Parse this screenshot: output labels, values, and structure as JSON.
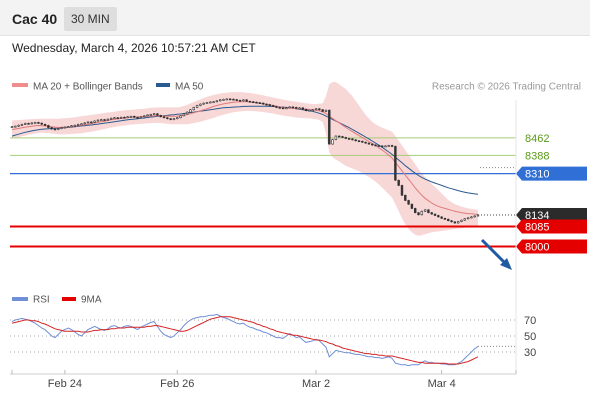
{
  "header": {
    "instrument": "Cac 40",
    "period": "30 MIN",
    "datetime": "Wednesday, March 4, 2026 10:57:21 AM CET"
  },
  "legend": {
    "bollinger": "MA 20 + Bollinger Bands",
    "ma50": "MA 50",
    "credit": "Research © 2026 Trading Central",
    "rsi": "RSI",
    "rsi_ma": "9MA"
  },
  "colors": {
    "candle": "#333333",
    "band_fill": "#f6c9c9",
    "ma20": "#e07a7a",
    "ma50": "#2a5a8f",
    "green_level": "#a8cc7a",
    "green_text": "#5a9a1a",
    "blue_level": "#2f6fd6",
    "red_level": "#e50000",
    "current_badge": "#2b2b2b",
    "arrow": "#1f5aa3",
    "rsi": "#6f8fd6",
    "rsi_ma": "#d42424"
  },
  "chart_data": {
    "type": "candlestick",
    "y_range": [
      7900,
      8700
    ],
    "x_ticks": [
      "Feb 24",
      "Feb 26",
      "Mar 2",
      "Mar 4"
    ],
    "levels": [
      {
        "value": 8462,
        "label": "8462",
        "style": "resistance-green"
      },
      {
        "value": 8388,
        "label": "8388",
        "style": "resistance-green"
      },
      {
        "value": 8310,
        "label": "8310",
        "style": "pivot-blue"
      },
      {
        "value": 8134,
        "label": "8134",
        "style": "current-price"
      },
      {
        "value": 8085,
        "label": "8085",
        "style": "support-red"
      },
      {
        "value": 8000,
        "label": "8000",
        "style": "support-red"
      }
    ],
    "closes": [
      8510,
      8512,
      8516,
      8520,
      8524,
      8522,
      8526,
      8528,
      8525,
      8520,
      8515,
      8506,
      8500,
      8498,
      8502,
      8506,
      8508,
      8510,
      8514,
      8516,
      8520,
      8522,
      8526,
      8530,
      8528,
      8534,
      8538,
      8540,
      8538,
      8542,
      8546,
      8548,
      8546,
      8550,
      8549,
      8552,
      8554,
      8550,
      8548,
      8552,
      8556,
      8560,
      8562,
      8565,
      8558,
      8552,
      8548,
      8544,
      8540,
      8544,
      8548,
      8556,
      8564,
      8572,
      8582,
      8592,
      8600,
      8606,
      8610,
      8612,
      8615,
      8616,
      8620,
      8624,
      8626,
      8628,
      8627,
      8625,
      8622,
      8620,
      8624,
      8618,
      8616,
      8614,
      8612,
      8610,
      8606,
      8604,
      8600,
      8596,
      8592,
      8590,
      8588,
      8590,
      8594,
      8592,
      8588,
      8590,
      8584,
      8578,
      8580,
      8582,
      8586,
      8582,
      8575,
      8580,
      8436,
      8455,
      8470,
      8468,
      8464,
      8460,
      8458,
      8454,
      8450,
      8448,
      8444,
      8440,
      8436,
      8432,
      8430,
      8428,
      8426,
      8428,
      8430,
      8426,
      8282,
      8260,
      8218,
      8196,
      8180,
      8162,
      8144,
      8135,
      8150,
      8156,
      8144,
      8138,
      8132,
      8126,
      8120,
      8116,
      8110,
      8105,
      8100,
      8106,
      8112,
      8118,
      8122,
      8126,
      8130,
      8134
    ],
    "ma20": [
      8498,
      8500,
      8502,
      8505,
      8508,
      8510,
      8512,
      8514,
      8515,
      8514,
      8513,
      8512,
      8510,
      8508,
      8507,
      8507,
      8508,
      8509,
      8510,
      8512,
      8514,
      8516,
      8518,
      8521,
      8523,
      8526,
      8528,
      8531,
      8533,
      8536,
      8539,
      8541,
      8543,
      8545,
      8547,
      8549,
      8550,
      8551,
      8551,
      8552,
      8553,
      8554,
      8555,
      8556,
      8556,
      8556,
      8555,
      8555,
      8554,
      8554,
      8555,
      8556,
      8558,
      8561,
      8565,
      8569,
      8573,
      8577,
      8582,
      8586,
      8591,
      8596,
      8600,
      8604,
      8607,
      8610,
      8612,
      8614,
      8615,
      8616,
      8616,
      8616,
      8615,
      8614,
      8612,
      8610,
      8608,
      8605,
      8602,
      8600,
      8597,
      8594,
      8591,
      8590,
      8589,
      8588,
      8587,
      8586,
      8585,
      8584,
      8583,
      8581,
      8580,
      8577,
      8573,
      8566,
      8555,
      8545,
      8535,
      8526,
      8516,
      8507,
      8498,
      8489,
      8480,
      8472,
      8463,
      8455,
      8447,
      8438,
      8430,
      8420,
      8410,
      8400,
      8388,
      8376,
      8358,
      8340,
      8322,
      8304,
      8286,
      8268,
      8250,
      8233,
      8218,
      8205,
      8195,
      8185,
      8177,
      8171,
      8166,
      8162,
      8158,
      8154,
      8150,
      8147,
      8144,
      8142,
      8140,
      8139,
      8138,
      8137
    ],
    "ma50": [
      8470,
      8474,
      8478,
      8482,
      8486,
      8489,
      8492,
      8495,
      8497,
      8499,
      8500,
      8501,
      8502,
      8503,
      8504,
      8505,
      8506,
      8507,
      8508,
      8510,
      8511,
      8513,
      8514,
      8516,
      8517,
      8519,
      8521,
      8523,
      8525,
      8527,
      8529,
      8531,
      8533,
      8535,
      8537,
      8539,
      8541,
      8542,
      8544,
      8546,
      8547,
      8549,
      8551,
      8552,
      8554,
      8555,
      8557,
      8558,
      8560,
      8561,
      8563,
      8564,
      8566,
      8568,
      8570,
      8572,
      8574,
      8576,
      8578,
      8580,
      8582,
      8584,
      8586,
      8588,
      8590,
      8591,
      8592,
      8593,
      8594,
      8595,
      8596,
      8596,
      8597,
      8597,
      8597,
      8597,
      8597,
      8597,
      8596,
      8596,
      8595,
      8594,
      8593,
      8592,
      8590,
      8588,
      8586,
      8584,
      8582,
      8580,
      8578,
      8575,
      8571,
      8567,
      8562,
      8555,
      8548,
      8541,
      8534,
      8527,
      8520,
      8513,
      8506,
      8498,
      8490,
      8482,
      8474,
      8466,
      8458,
      8449,
      8440,
      8431,
      8422,
      8412,
      8402,
      8392,
      8380,
      8368,
      8356,
      8344,
      8333,
      8322,
      8312,
      8302,
      8294,
      8287,
      8281,
      8275,
      8270,
      8265,
      8260,
      8255,
      8250,
      8246,
      8242,
      8238,
      8234,
      8231,
      8228,
      8226,
      8224,
      8222
    ],
    "bb_upper": [
      8536,
      8537,
      8538,
      8539,
      8540,
      8541,
      8542,
      8543,
      8544,
      8544,
      8544,
      8544,
      8544,
      8544,
      8544,
      8545,
      8546,
      8547,
      8548,
      8550,
      8552,
      8554,
      8556,
      8558,
      8560,
      8562,
      8564,
      8566,
      8568,
      8570,
      8572,
      8574,
      8576,
      8578,
      8580,
      8581,
      8582,
      8583,
      8584,
      8585,
      8586,
      8588,
      8590,
      8591,
      8592,
      8592,
      8592,
      8592,
      8592,
      8592,
      8592,
      8594,
      8598,
      8603,
      8609,
      8615,
      8621,
      8627,
      8632,
      8637,
      8641,
      8645,
      8648,
      8651,
      8653,
      8655,
      8656,
      8657,
      8657,
      8657,
      8656,
      8655,
      8653,
      8651,
      8648,
      8646,
      8643,
      8640,
      8637,
      8634,
      8631,
      8628,
      8625,
      8622,
      8620,
      8618,
      8616,
      8614,
      8612,
      8610,
      8608,
      8606,
      8606,
      8608,
      8610,
      8640,
      8690,
      8700,
      8700,
      8690,
      8680,
      8670,
      8655,
      8640,
      8620,
      8600,
      8580,
      8560,
      8545,
      8530,
      8520,
      8512,
      8506,
      8500,
      8494,
      8488,
      8470,
      8450,
      8430,
      8410,
      8390,
      8370,
      8350,
      8330,
      8310,
      8295,
      8280,
      8266,
      8253,
      8240,
      8226,
      8212,
      8198,
      8188,
      8180,
      8175,
      8170,
      8166,
      8162,
      8160,
      8158,
      8156
    ],
    "bb_lower": [
      8460,
      8462,
      8465,
      8469,
      8472,
      8475,
      8478,
      8481,
      8483,
      8484,
      8484,
      8483,
      8481,
      8479,
      8478,
      8478,
      8478,
      8478,
      8479,
      8480,
      8481,
      8482,
      8484,
      8486,
      8488,
      8491,
      8494,
      8497,
      8500,
      8503,
      8506,
      8509,
      8511,
      8513,
      8515,
      8517,
      8519,
      8520,
      8521,
      8522,
      8523,
      8524,
      8525,
      8526,
      8526,
      8525,
      8524,
      8522,
      8520,
      8520,
      8520,
      8520,
      8520,
      8520,
      8522,
      8525,
      8528,
      8531,
      8535,
      8539,
      8543,
      8547,
      8552,
      8557,
      8561,
      8565,
      8568,
      8571,
      8573,
      8575,
      8576,
      8577,
      8577,
      8576,
      8575,
      8574,
      8572,
      8570,
      8568,
      8566,
      8563,
      8560,
      8557,
      8555,
      8553,
      8551,
      8549,
      8548,
      8547,
      8546,
      8545,
      8544,
      8542,
      8538,
      8530,
      8480,
      8400,
      8380,
      8370,
      8362,
      8352,
      8344,
      8338,
      8332,
      8326,
      8320,
      8312,
      8304,
      8296,
      8286,
      8276,
      8264,
      8250,
      8236,
      8222,
      8208,
      8180,
      8150,
      8120,
      8095,
      8075,
      8060,
      8050,
      8045,
      8048,
      8052,
      8056,
      8060,
      8062,
      8064,
      8066,
      8068,
      8070,
      8072,
      8074,
      8076,
      8078,
      8080,
      8082,
      8084,
      8086,
      8088
    ],
    "rsi": {
      "ticks": [
        70,
        50,
        30
      ],
      "range": [
        10,
        90
      ],
      "values": [
        68,
        70,
        71,
        72,
        71,
        70,
        68,
        66,
        63,
        60,
        58,
        54,
        50,
        48,
        52,
        56,
        58,
        60,
        58,
        55,
        52,
        50,
        54,
        58,
        60,
        62,
        60,
        58,
        57,
        59,
        62,
        63,
        61,
        60,
        62,
        63,
        62,
        60,
        58,
        61,
        63,
        65,
        67,
        68,
        62,
        56,
        52,
        50,
        48,
        50,
        54,
        58,
        63,
        67,
        70,
        72,
        73,
        74,
        74,
        75,
        76,
        76,
        77,
        75,
        73,
        72,
        70,
        68,
        66,
        65,
        66,
        63,
        61,
        60,
        58,
        57,
        55,
        54,
        52,
        50,
        48,
        48,
        47,
        50,
        53,
        51,
        48,
        49,
        45,
        42,
        43,
        44,
        46,
        44,
        40,
        36,
        24,
        28,
        32,
        31,
        30,
        29,
        29,
        28,
        27,
        27,
        26,
        25,
        24,
        24,
        23,
        23,
        22,
        23,
        24,
        22,
        16,
        15,
        14,
        14,
        13,
        14,
        14,
        14,
        17,
        19,
        17,
        17,
        16,
        16,
        15,
        15,
        14,
        14,
        14,
        16,
        18,
        22,
        26,
        30,
        34,
        37
      ],
      "ma": [
        66,
        67,
        68,
        69,
        70,
        70,
        69,
        69,
        68,
        66,
        65,
        63,
        61,
        59,
        58,
        57,
        56,
        56,
        56,
        56,
        56,
        55,
        55,
        55,
        56,
        57,
        57,
        58,
        58,
        58,
        59,
        59,
        60,
        60,
        60,
        61,
        61,
        61,
        61,
        61,
        61,
        62,
        62,
        63,
        63,
        62,
        61,
        60,
        59,
        58,
        57,
        56,
        56,
        57,
        59,
        61,
        63,
        65,
        67,
        69,
        71,
        72,
        73,
        74,
        74,
        74,
        74,
        73,
        72,
        71,
        70,
        69,
        68,
        67,
        65,
        64,
        62,
        61,
        59,
        58,
        56,
        55,
        54,
        53,
        52,
        51,
        51,
        50,
        49,
        48,
        47,
        46,
        45,
        45,
        44,
        43,
        41,
        40,
        38,
        37,
        35,
        34,
        33,
        32,
        31,
        30,
        29,
        28,
        28,
        27,
        27,
        26,
        26,
        25,
        25,
        25,
        24,
        23,
        22,
        21,
        20,
        19,
        18,
        17,
        17,
        16,
        16,
        16,
        16,
        16,
        16,
        16,
        15,
        15,
        15,
        15,
        16,
        17,
        18,
        20,
        22,
        24
      ]
    }
  }
}
